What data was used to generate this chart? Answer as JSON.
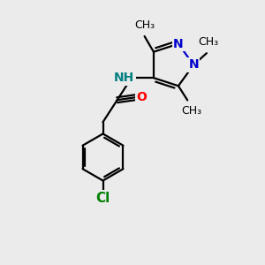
{
  "bg_color": "#ebebeb",
  "bond_color": "#000000",
  "n_color": "#0000cc",
  "nh_color": "#008080",
  "o_color": "#ff0000",
  "cl_color": "#008000",
  "font_size": 10,
  "lw": 1.6,
  "figsize": [
    3.0,
    3.0
  ],
  "dpi": 100,
  "xlim": [
    0,
    10
  ],
  "ylim": [
    0,
    10
  ]
}
